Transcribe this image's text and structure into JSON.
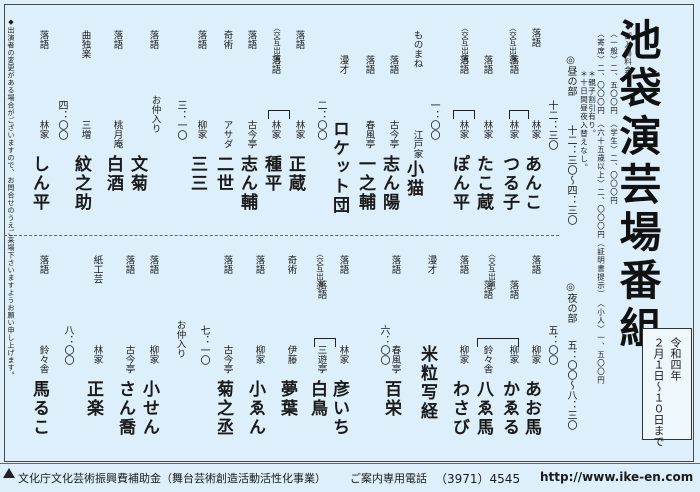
{
  "title": "池袋演芸場番組",
  "date": {
    "era": "令和四年",
    "range": "２月１日〜１０日まで"
  },
  "prices": {
    "heading": "◆御入場料金",
    "line1": "〈一般〉二、五〇〇円　〈学生〉二、〇〇〇円",
    "line2": "〈寄席〉二、〇〇〇円　〈六十五歳以上〉二、〇〇〇円（証明書提示）　〈小人〉一、五〇〇円",
    "note1": "＊親子割引有り。",
    "note2": "＊十日間昼夜入替えなし。"
  },
  "notice": "◆出演者の変更がある場合がございますので、お問合せのうえご来場下さいますようお願い申し上げます。",
  "day": {
    "section": "◎昼の部",
    "time": "十二：三〇〜四：三〇",
    "kouban": "〈交互出演〉",
    "t1": "十二：三〇",
    "t2": "一：〇〇",
    "t3": "二：〇〇",
    "t4": "三：一〇",
    "t5": "四：〇〇",
    "naka": "お仲入り",
    "acts": [
      {
        "act": "落語",
        "family": "林家",
        "name": "あんこ"
      },
      {
        "act": "落語",
        "family": "林家",
        "name": "つる子"
      },
      {
        "act": "落語",
        "family": "林家",
        "name": "たこ蔵"
      },
      {
        "act": "落語",
        "family": "林家",
        "name": "ぽん平"
      },
      {
        "act": "ものまね",
        "family": "江戸家",
        "name": "小猫"
      },
      {
        "act": "落語",
        "family": "古今亭",
        "name": "志ん陽"
      },
      {
        "act": "落語",
        "family": "春風亭",
        "name": "一之輔"
      },
      {
        "act": "漫才",
        "family": "",
        "name": "ロケット団"
      },
      {
        "act": "落語",
        "family": "林家",
        "name": "正蔵"
      },
      {
        "act": "落語",
        "family": "林家",
        "name": "種平"
      },
      {
        "act": "落語",
        "family": "古今亭",
        "name": "志ん輔"
      },
      {
        "act": "奇術",
        "family": "アサダ",
        "name": "二世"
      },
      {
        "act": "落語",
        "family": "柳家",
        "name": "三三"
      },
      {
        "act": "落語",
        "family": "",
        "name": "文菊"
      },
      {
        "act": "落語",
        "family": "桃月庵",
        "name": "白酒"
      },
      {
        "act": "曲独楽",
        "family": "三増",
        "name": "紋之助"
      },
      {
        "act": "落語",
        "family": "林家",
        "name": "しん平"
      }
    ]
  },
  "night": {
    "section": "◎夜の部",
    "time": "五：〇〇〜八：三〇",
    "kouban": "〈交互出演〉",
    "t1": "五：〇〇",
    "t2": "六：〇〇",
    "t3": "七：一〇",
    "t4": "八：〇〇",
    "naka": "お仲入り",
    "acts": [
      {
        "act": "落語",
        "family": "柳家",
        "name": "あお馬"
      },
      {
        "act": "落語",
        "family": "柳家",
        "name": "かゑる"
      },
      {
        "act": "落語",
        "family": "鈴々舎",
        "name": "八ゑ馬"
      },
      {
        "act": "落語",
        "family": "柳家",
        "name": "わさび"
      },
      {
        "act": "漫才",
        "family": "",
        "name": "米粒写経"
      },
      {
        "act": "落語",
        "family": "春風亭",
        "name": "百栄"
      },
      {
        "act": "落語",
        "family": "林家",
        "name": "彦いち"
      },
      {
        "act": "落語",
        "family": "三遊亭",
        "name": "白鳥"
      },
      {
        "act": "奇術",
        "family": "伊藤",
        "name": "夢葉"
      },
      {
        "act": "落語",
        "family": "柳家",
        "name": "小ゑん"
      },
      {
        "act": "落語",
        "family": "古今亭",
        "name": "菊之丞"
      },
      {
        "act": "落語",
        "family": "柳家",
        "name": "小せん"
      },
      {
        "act": "落語",
        "family": "古今亭",
        "name": "さん喬"
      },
      {
        "act": "紙工芸",
        "family": "林家",
        "name": "正楽"
      },
      {
        "act": "落語",
        "family": "鈴々舎",
        "name": "馬るこ"
      }
    ]
  },
  "footer": {
    "sponsor": "文化庁文化芸術振興費補助金（舞台芸術創造活動活性化事業）",
    "phone_label": "ご案内専用電話",
    "phone": "（3971）4545",
    "url": "http://www.ike-en.com"
  }
}
